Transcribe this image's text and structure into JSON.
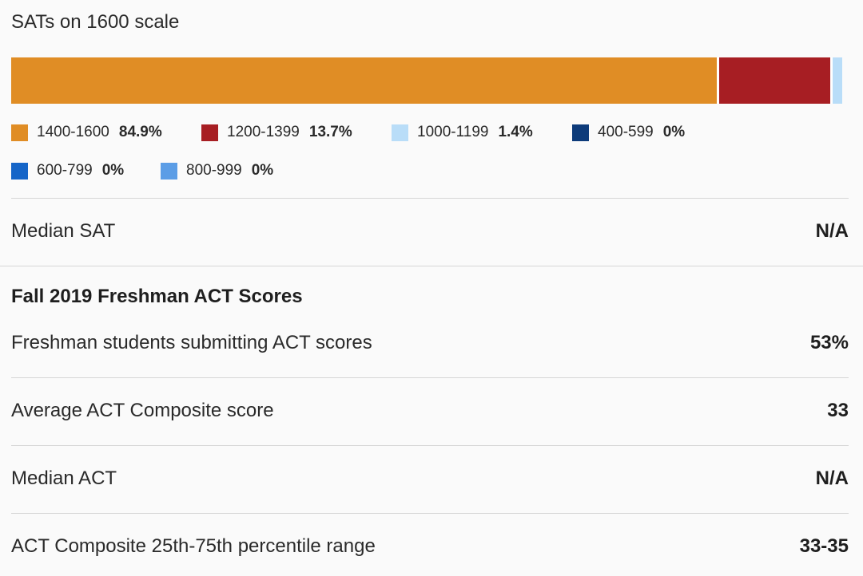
{
  "sat": {
    "title": "SATs on 1600 scale",
    "segments": [
      {
        "label": "1400-1600",
        "pct": "84.9%",
        "value": 84.9,
        "color": "#e08d25"
      },
      {
        "label": "1200-1399",
        "pct": "13.7%",
        "value": 13.7,
        "color": "#a71e23"
      },
      {
        "label": "1000-1199",
        "pct": "1.4%",
        "value": 1.4,
        "color": "#b9ddf8"
      }
    ],
    "legend_row1": [
      {
        "label": "1400-1600",
        "pct": "84.9%",
        "color": "#e08d25"
      },
      {
        "label": "1200-1399",
        "pct": "13.7%",
        "color": "#a71e23"
      },
      {
        "label": "1000-1199",
        "pct": "1.4%",
        "color": "#b9ddf8"
      },
      {
        "label": "400-599",
        "pct": "0%",
        "color": "#0d3b7a"
      }
    ],
    "legend_row2": [
      {
        "label": "600-799",
        "pct": "0%",
        "color": "#1565c8"
      },
      {
        "label": "800-999",
        "pct": "0%",
        "color": "#5b9de6"
      }
    ],
    "median_label": "Median SAT",
    "median_value": "N/A"
  },
  "act": {
    "section_title": "Fall 2019 Freshman ACT Scores",
    "rows": [
      {
        "label": "Freshman students submitting ACT scores",
        "value": "53%"
      },
      {
        "label": "Average ACT Composite score",
        "value": "33"
      },
      {
        "label": "Median ACT",
        "value": "N/A"
      },
      {
        "label": "ACT Composite 25th-75th percentile range",
        "value": "33-35"
      }
    ]
  }
}
